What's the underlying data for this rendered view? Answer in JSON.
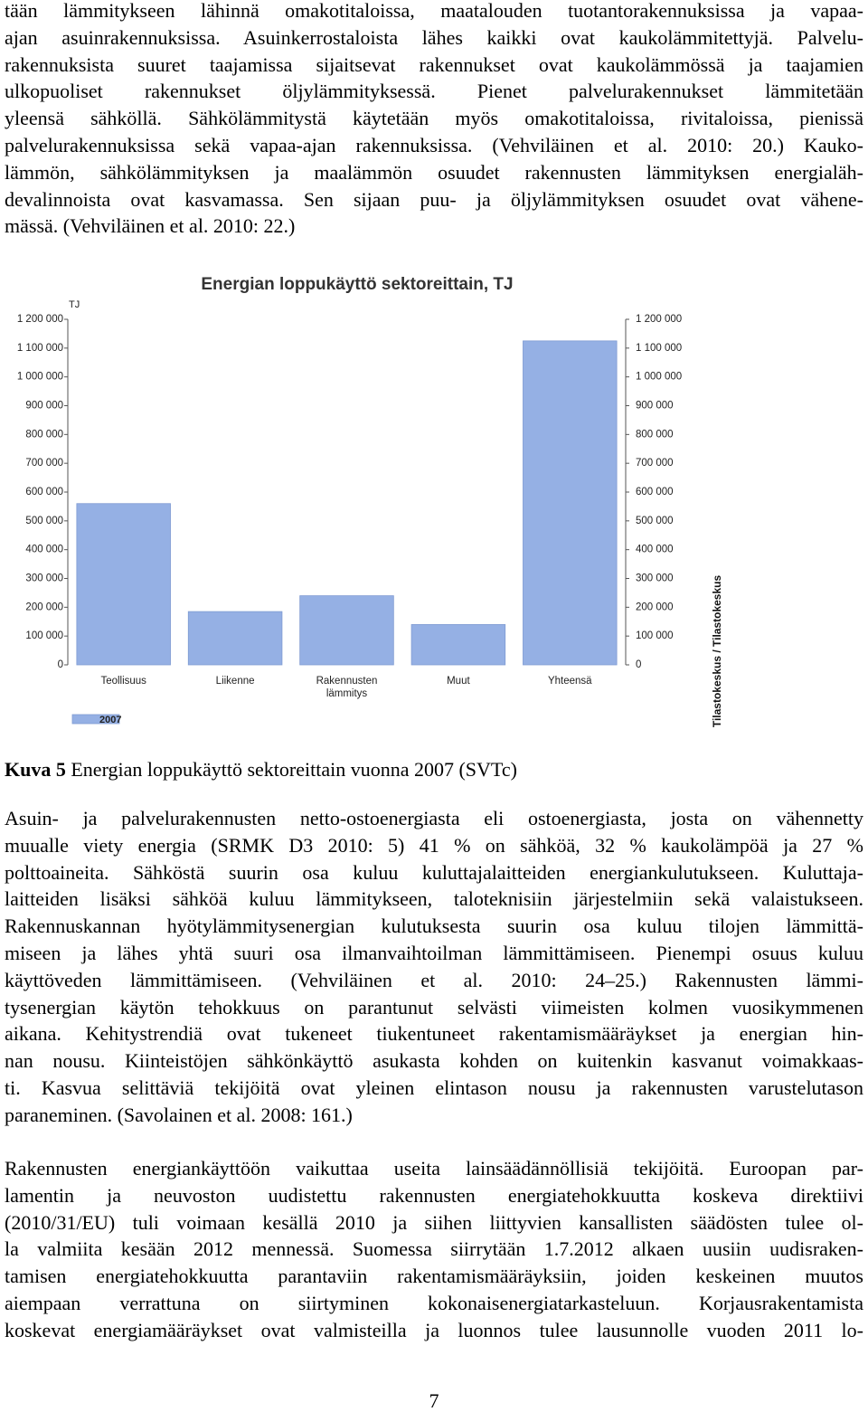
{
  "paragraphs": [
    {
      "lines": [
        "tään lämmitykseen lähinnä omakotitaloissa, maatalouden tuotantorakennuksissa ja vapaa-",
        "ajan asuinrakennuksissa. Asuinkerrostaloista lähes kaikki ovat kaukolämmitettyjä. Palvelu-",
        "rakennuksista suuret taajamissa sijaitsevat rakennukset ovat kaukolämmössä ja taajamien",
        "ulkopuoliset rakennukset öljylämmityksessä. Pienet palvelurakennukset lämmitetään",
        "yleensä sähköllä. Sähkölämmitystä käytetään myös omakotitaloissa, rivitaloissa, pienissä",
        "palvelurakennuksissa sekä vapaa-ajan rakennuksissa. (Vehviläinen et al. 2010: 20.) Kauko-",
        "lämmön, sähkölämmityksen ja maalämmön osuudet rakennusten lämmityksen energialäh-",
        "devalinnoista ovat kasvamassa. Sen sijaan puu- ja öljylämmityksen osuudet ovat vähene-",
        "mässä. (Vehviläinen et al. 2010: 22.)"
      ]
    },
    {
      "lines": [
        "Asuin- ja palvelurakennusten netto-ostoenergiasta eli ostoenergiasta, josta on vähennetty",
        "muualle viety energia (SRMK D3 2010: 5) 41 % on sähköä, 32 % kaukolämpöä ja 27 %",
        "polttoaineita. Sähköstä suurin osa kuluu kuluttajalaitteiden energiankulutukseen. Kuluttaja-",
        "laitteiden lisäksi sähköä kuluu lämmitykseen, taloteknisiin järjestelmiin sekä valaistukseen.",
        "Rakennuskannan hyötylämmitysenergian kulutuksesta suurin osa kuluu tilojen lämmittä-",
        "miseen ja lähes yhtä suuri osa ilmanvaihtoilman lämmittämiseen. Pienempi osuus kuluu",
        "käyttöveden lämmittämiseen. (Vehviläinen et al. 2010: 24–25.) Rakennusten lämmi-",
        "tysenergian käytön tehokkuus on parantunut selvästi viimeisten kolmen vuosikymmenen",
        "aikana. Kehitystrendiä ovat tukeneet tiukentuneet rakentamismääräykset ja energian hin-",
        "nan nousu. Kiinteistöjen sähkönkäyttö asukasta kohden on kuitenkin kasvanut voimakkaas-",
        "ti. Kasvua selittäviä tekijöitä ovat yleinen elintason nousu ja rakennusten varustelutason",
        "paraneminen. (Savolainen et al. 2008: 161.)"
      ]
    },
    {
      "lines": [
        "Rakennusten energiankäyttöön vaikuttaa useita lainsäädännöllisiä tekijöitä. Euroopan par-",
        "lamentin ja neuvoston uudistettu rakennusten energiatehokkuutta koskeva direktiivi",
        "(2010/31/EU) tuli voimaan kesällä 2010 ja siihen liittyvien kansallisten säädösten tulee ol-",
        "la valmiita kesään 2012 mennessä. Suomessa siirrytään 1.7.2012 alkaen uusiin uudisraken-",
        "tamisen energiatehokkuutta parantaviin rakentamismääräyksiin, joiden keskeinen muutos",
        "aiempaan verrattuna on siirtyminen kokonaisenergiatarkasteluun. Korjausrakentamista",
        "koskevat energiamääräykset ovat valmisteilla ja luonnos tulee lausunnolle vuoden 2011 lo-"
      ]
    }
  ],
  "chart_data": {
    "type": "bar",
    "title": "Energian loppukäyttö sektoreittain, TJ",
    "y_unit": "TJ",
    "categories": [
      "Teollisuus",
      "Liikenne",
      "Rakennusten lämmitys",
      "Muut",
      "Yhteensä"
    ],
    "series": [
      {
        "name": "2007",
        "color": "#95b0e4",
        "values": [
          560000,
          185000,
          240000,
          140000,
          1125000
        ]
      }
    ],
    "ylim": [
      0,
      1200000
    ],
    "yticks": [
      0,
      {
        "value": 100000,
        "label": "100 000"
      },
      {
        "value": 200000,
        "label": "200 000"
      },
      {
        "value": 300000,
        "label": "300 000"
      },
      {
        "value": 400000,
        "label": "400 000"
      },
      {
        "value": 500000,
        "label": "500 000"
      },
      {
        "value": 600000,
        "label": "600 000"
      },
      {
        "value": 700000,
        "label": "700 000"
      },
      {
        "value": 800000,
        "label": "800 000"
      },
      {
        "value": 900000,
        "label": "900 000"
      },
      {
        "value": 1000000,
        "label": "1 000 000"
      },
      {
        "value": 1100000,
        "label": "1 100 000"
      },
      {
        "value": 1200000,
        "label": "1 200 000"
      }
    ],
    "grid": false,
    "source": "Tilastokeskus / Tilastokeskus"
  },
  "caption": {
    "label": "Kuva 5",
    "text": "Energian loppukäyttö sektoreittain vuonna 2007 (SVTc)"
  },
  "page_number": "7"
}
